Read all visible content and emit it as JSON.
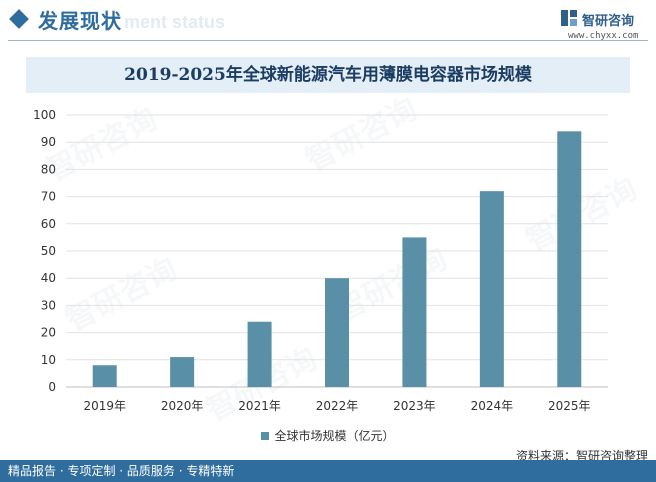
{
  "header": {
    "section_title": "发展现状",
    "section_subtitle": "ment status",
    "brand": "智研咨询",
    "brand_url": "www.chyxx.com"
  },
  "watermark_text": "智研咨询",
  "footer": {
    "tagline": "精品报告 · 专项定制 · 品质服务 · 专精特新",
    "source": "资料来源：智研咨询整理"
  },
  "colors": {
    "bar": "#5a8fa8",
    "accent": "#2f6d9e",
    "title_band": "#e3eef7"
  },
  "chart_data": {
    "type": "bar",
    "title": "2019-2025年全球新能源汽车用薄膜电容器市场规模",
    "categories": [
      "2019年",
      "2020年",
      "2021年",
      "2022年",
      "2023年",
      "2024年",
      "2025年"
    ],
    "series": [
      {
        "name": "全球市场规模（亿元）",
        "values": [
          8,
          11,
          24,
          40,
          55,
          72,
          94
        ]
      }
    ],
    "yticks": [
      "0",
      "10",
      "20",
      "30",
      "40",
      "50",
      "60",
      "70",
      "80",
      "90",
      "100"
    ],
    "ylim": [
      0,
      100
    ],
    "grid": true,
    "legend": "bottom-center"
  }
}
